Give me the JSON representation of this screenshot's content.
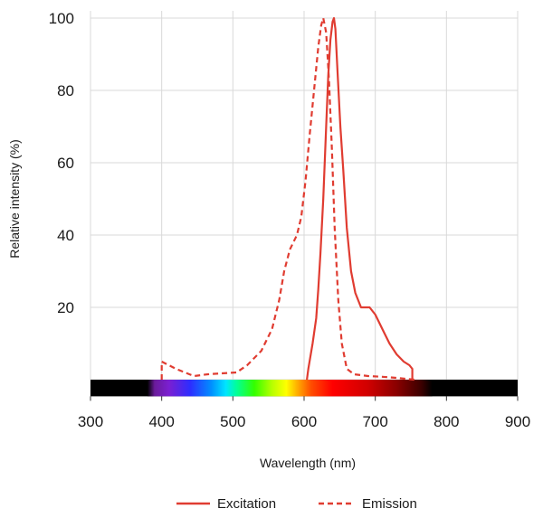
{
  "chart_data": {
    "type": "line",
    "title": "",
    "xlabel": "Wavelength (nm)",
    "ylabel": "Relative intensity (%)",
    "xlim": [
      300,
      900
    ],
    "ylim": [
      -5,
      102
    ],
    "x_ticks": [
      300,
      400,
      500,
      600,
      700,
      800,
      900
    ],
    "y_ticks": [
      20,
      40,
      60,
      80,
      100
    ],
    "grid": true,
    "legend_position": "bottom",
    "colors": {
      "series": "#e03c31",
      "axis": "#333333",
      "grid": "#d9d9d9"
    },
    "spectrum_band": {
      "x_range": [
        300,
        900
      ],
      "visible_range": [
        380,
        780
      ]
    },
    "series": [
      {
        "name": "Excitation",
        "style": "solid",
        "points": [
          [
            604,
            0
          ],
          [
            606,
            3
          ],
          [
            612,
            10
          ],
          [
            617,
            17
          ],
          [
            620,
            25
          ],
          [
            623,
            35
          ],
          [
            627,
            50
          ],
          [
            631,
            70
          ],
          [
            634,
            84
          ],
          [
            637,
            94
          ],
          [
            640,
            99
          ],
          [
            642,
            100
          ],
          [
            644,
            97
          ],
          [
            647,
            85
          ],
          [
            651,
            70
          ],
          [
            655,
            58
          ],
          [
            660,
            42
          ],
          [
            666,
            30
          ],
          [
            672,
            24
          ],
          [
            680,
            20
          ],
          [
            692,
            20
          ],
          [
            700,
            18
          ],
          [
            710,
            14
          ],
          [
            720,
            10
          ],
          [
            730,
            7
          ],
          [
            740,
            5
          ],
          [
            748,
            4
          ],
          [
            752,
            3
          ],
          [
            752,
            0
          ]
        ]
      },
      {
        "name": "Emission",
        "style": "dashed",
        "points": [
          [
            400,
            0
          ],
          [
            400,
            5
          ],
          [
            420,
            3
          ],
          [
            445,
            1
          ],
          [
            465,
            1.5
          ],
          [
            480,
            1.7
          ],
          [
            505,
            2
          ],
          [
            520,
            4
          ],
          [
            540,
            8
          ],
          [
            555,
            14
          ],
          [
            565,
            22
          ],
          [
            572,
            30
          ],
          [
            580,
            36
          ],
          [
            590,
            40
          ],
          [
            596,
            45
          ],
          [
            602,
            55
          ],
          [
            608,
            68
          ],
          [
            614,
            80
          ],
          [
            620,
            92
          ],
          [
            624,
            98
          ],
          [
            627,
            100
          ],
          [
            631,
            96
          ],
          [
            635,
            83
          ],
          [
            639,
            64
          ],
          [
            643,
            42
          ],
          [
            648,
            22
          ],
          [
            653,
            10
          ],
          [
            660,
            3
          ],
          [
            670,
            1.5
          ],
          [
            690,
            1
          ],
          [
            710,
            0.8
          ],
          [
            730,
            0.5
          ],
          [
            755,
            0
          ]
        ]
      }
    ]
  }
}
